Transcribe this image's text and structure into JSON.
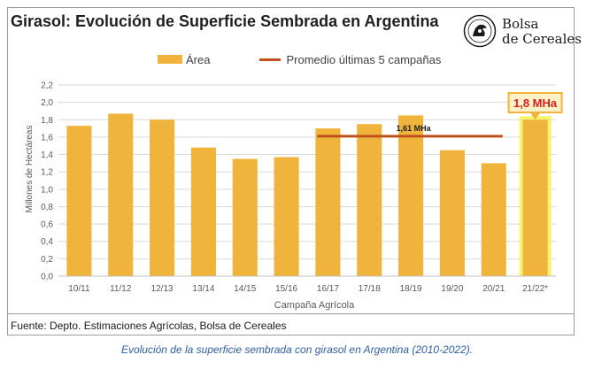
{
  "title": "Girasol: Evolución de Superficie Sembrada en Argentina",
  "logo": {
    "line1": "Bolsa",
    "line2": "de Cereales"
  },
  "footer": "Fuente: Depto. Estimaciones Agrícolas, Bolsa de Cereales",
  "caption": "Evolución de la superficie sembrada con girasol en Argentina (2010-2022).",
  "colors": {
    "bar": "#f0b43c",
    "highlight_glow": "#f4f04a",
    "avg_line": "#c0501e",
    "callout_text": "#d62020"
  },
  "chart_data": {
    "type": "bar",
    "xlabel": "Campaña Agrícola",
    "ylabel": "Millones de Hectáreas",
    "ylim": [
      0,
      2.2
    ],
    "yticks": [
      "0,0",
      "0,2",
      "0,4",
      "0,6",
      "0,8",
      "1,0",
      "1,2",
      "1,4",
      "1,6",
      "1,8",
      "2,0",
      "2,2"
    ],
    "grid": true,
    "legend_position": "top",
    "categories": [
      "10/11",
      "11/12",
      "12/13",
      "13/14",
      "14/15",
      "15/16",
      "16/17",
      "17/18",
      "18/19",
      "19/20",
      "20/21",
      "21/22*"
    ],
    "series": [
      {
        "name": "Área",
        "values": [
          1.73,
          1.87,
          1.8,
          1.48,
          1.35,
          1.37,
          1.7,
          1.75,
          1.85,
          1.45,
          1.3,
          1.8
        ]
      },
      {
        "name": "Promedio últimas 5 campañas",
        "kind": "line",
        "value": 1.61,
        "from": "16/17",
        "to": "20/21",
        "label": "1,61 MHa"
      }
    ],
    "callout": {
      "category": "21/22*",
      "label": "1,8 MHa"
    }
  }
}
